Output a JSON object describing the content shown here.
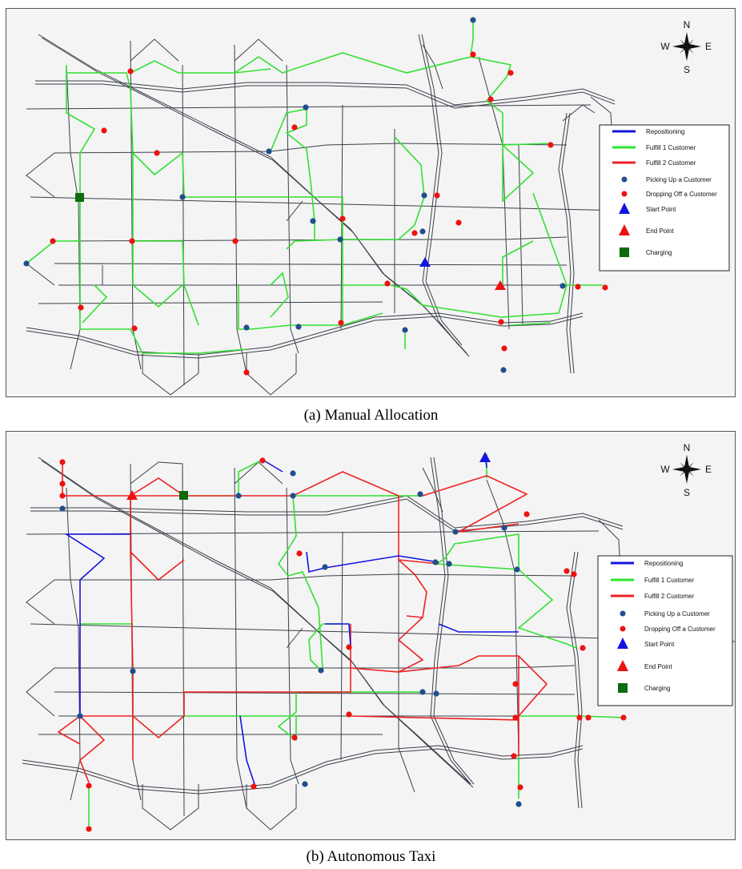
{
  "figure": {
    "panels": [
      {
        "id": "a",
        "caption": "(a) Manual Allocation",
        "compass": {
          "n": "N",
          "s": "S",
          "e": "E",
          "w": "W"
        },
        "legend": [
          {
            "label": "Repositioning",
            "kind": "line",
            "color": "#1515e0"
          },
          {
            "label": "Fulfill 1 Customer",
            "kind": "line",
            "color": "#2ee62e"
          },
          {
            "label": "Fulfill 2 Customer",
            "kind": "line",
            "color": "#ee2222"
          },
          {
            "label": "Picking Up a Customer",
            "kind": "dot",
            "color": "#1f4e8c"
          },
          {
            "label": "Dropping Off a Customer",
            "kind": "dot",
            "color": "#ee1111"
          },
          {
            "label": "Start Point",
            "kind": "triangle",
            "color": "#1515e0"
          },
          {
            "label": "End Point",
            "kind": "triangle",
            "color": "#ee1111"
          },
          {
            "label": "Charging",
            "kind": "square",
            "color": "#0d6b0d"
          }
        ]
      },
      {
        "id": "b",
        "caption": "(b) Autonomous Taxi",
        "compass": {
          "n": "N",
          "s": "S",
          "e": "E",
          "w": "W"
        },
        "legend": [
          {
            "label": "Repositioning",
            "kind": "line",
            "color": "#1515e0"
          },
          {
            "label": "Fulfill 1 Customer",
            "kind": "line",
            "color": "#2ee62e"
          },
          {
            "label": "Fulfill 2 Customer",
            "kind": "line",
            "color": "#ee2222"
          },
          {
            "label": "Picking Up a Customer",
            "kind": "dot",
            "color": "#1f4e8c"
          },
          {
            "label": "Dropping Off a Customer",
            "kind": "dot",
            "color": "#ee1111"
          },
          {
            "label": "Start Point",
            "kind": "triangle",
            "color": "#1515e0"
          },
          {
            "label": "End Point",
            "kind": "triangle",
            "color": "#ee1111"
          },
          {
            "label": "Charging",
            "kind": "square",
            "color": "#0d6b0d"
          }
        ]
      }
    ]
  }
}
